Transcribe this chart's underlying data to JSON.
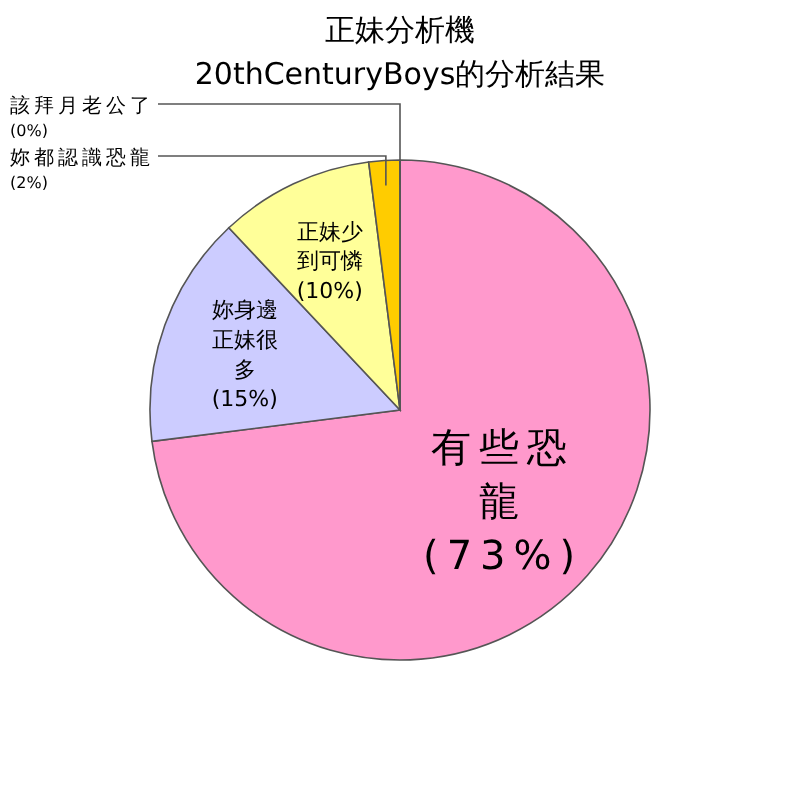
{
  "chart_data": {
    "type": "pie",
    "title": "正妹分析機",
    "subtitle": "20thCenturyBoys的分析結果",
    "categories": [
      "有些恐龍",
      "妳身邊正妹很多",
      "正妹少到可憐",
      "妳都認識恐龍",
      "該拜月老公了"
    ],
    "values": [
      73,
      15,
      10,
      2,
      0
    ],
    "colors": [
      "#ff99cc",
      "#ccccff",
      "#ffff99",
      "#ffcc00",
      "#333366"
    ],
    "value_labels": [
      "(73%)",
      "(15%)",
      "(10%)",
      "(2%)",
      "(0%)"
    ]
  }
}
